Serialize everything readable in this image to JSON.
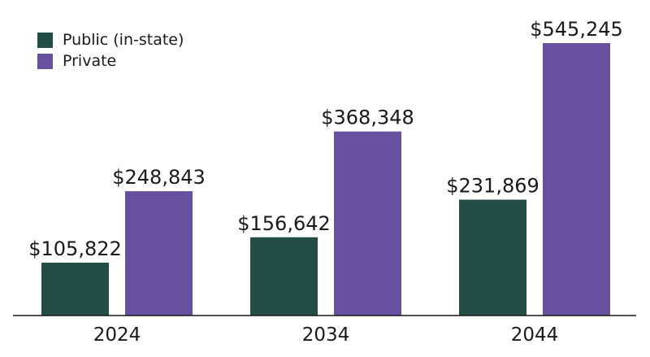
{
  "chart_data": {
    "type": "bar",
    "title": "",
    "xlabel": "",
    "ylabel": "",
    "categories": [
      "2024",
      "2034",
      "2044"
    ],
    "series": [
      {
        "name": "Public (in-state)",
        "color": "#244d45",
        "values": [
          105822,
          156642,
          231869
        ],
        "labels": [
          "$105,822",
          "$156,642",
          "$231,869"
        ]
      },
      {
        "name": "Private",
        "color": "#6750a0",
        "values": [
          248843,
          368348,
          545245
        ],
        "labels": [
          "$248,843",
          "$368,348",
          "$545,245"
        ]
      }
    ],
    "ylim": [
      0,
      545245
    ],
    "grid": false,
    "legend_position": "top-left",
    "axis_color": "#1a1a1a"
  }
}
